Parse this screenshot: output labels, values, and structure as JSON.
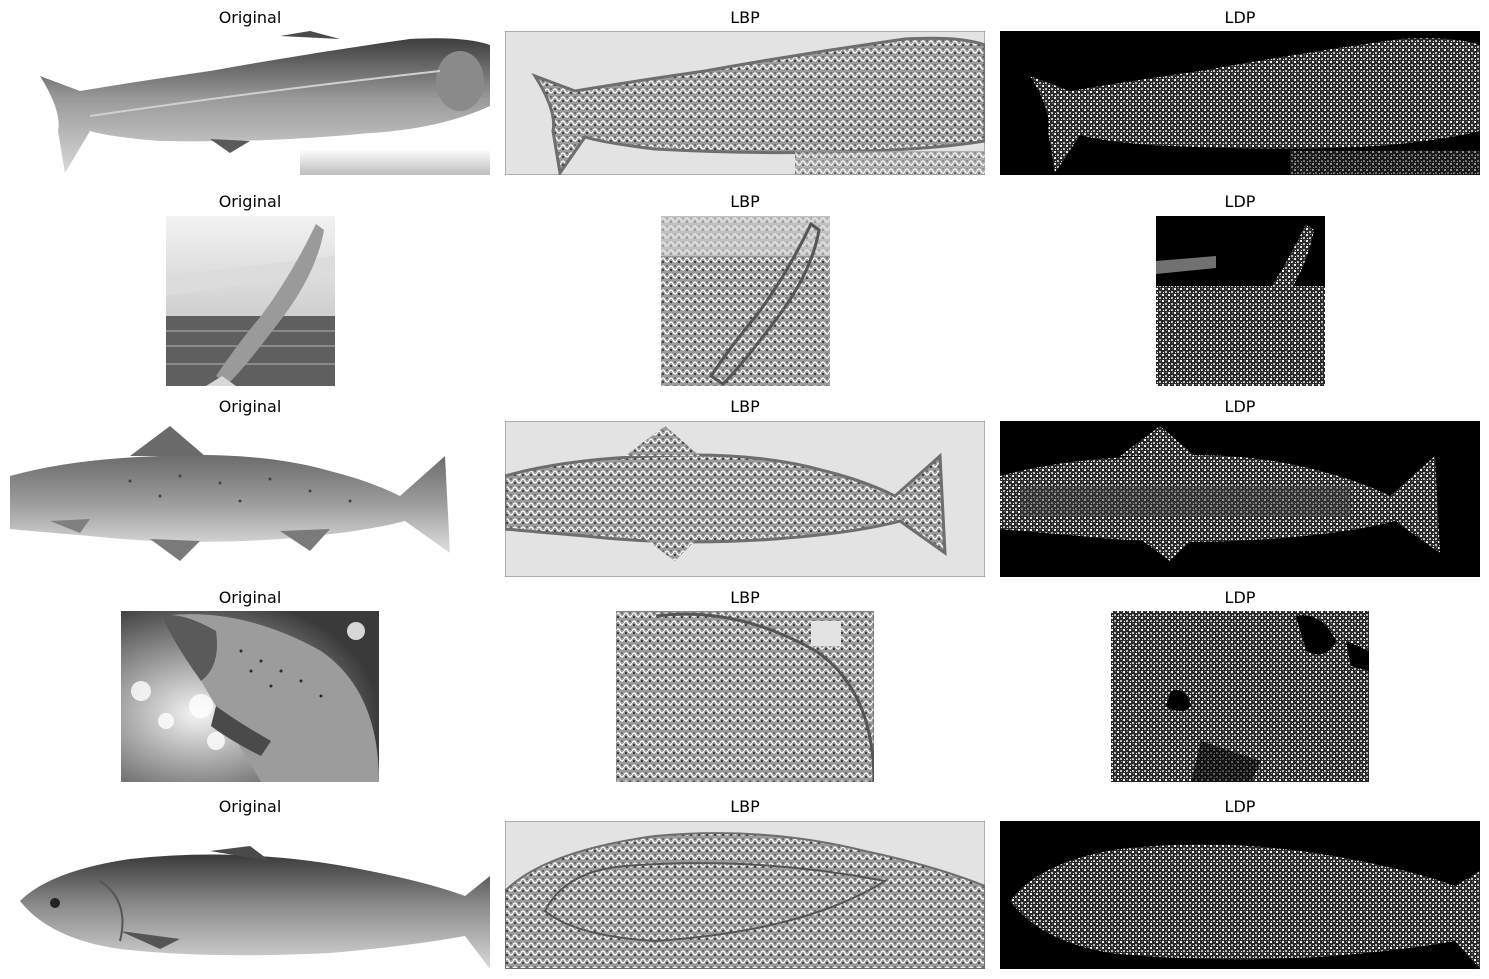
{
  "figure": {
    "colors": {
      "lbp_bg": "#e3e3e3",
      "lbp_line": "#6e6e6e",
      "ldp_bg": "#000000",
      "fish_light": "#e9e9e9",
      "fish_dark": "#3a3a3a"
    },
    "rows": [
      {
        "original_title": "Original",
        "lbp_title": "LBP",
        "ldp_title": "LDP"
      },
      {
        "original_title": "Original",
        "lbp_title": "LBP",
        "ldp_title": "LDP"
      },
      {
        "original_title": "Original",
        "lbp_title": "LBP",
        "ldp_title": "LDP"
      },
      {
        "original_title": "Original",
        "lbp_title": "LBP",
        "ldp_title": "LDP"
      },
      {
        "original_title": "Original",
        "lbp_title": "LBP",
        "ldp_title": "LDP"
      }
    ]
  }
}
